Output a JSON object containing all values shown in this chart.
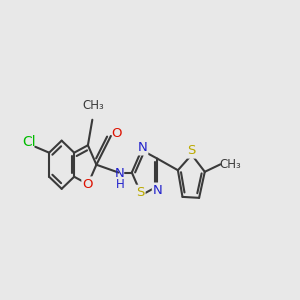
{
  "bg_color": "#e8e8e8",
  "bond_color": "#3a3a3a",
  "bond_width": 1.5,
  "figsize": [
    3.0,
    3.0
  ],
  "dpi": 100,
  "xlim": [
    -0.5,
    9.5
  ],
  "ylim": [
    1.5,
    7.5
  ]
}
